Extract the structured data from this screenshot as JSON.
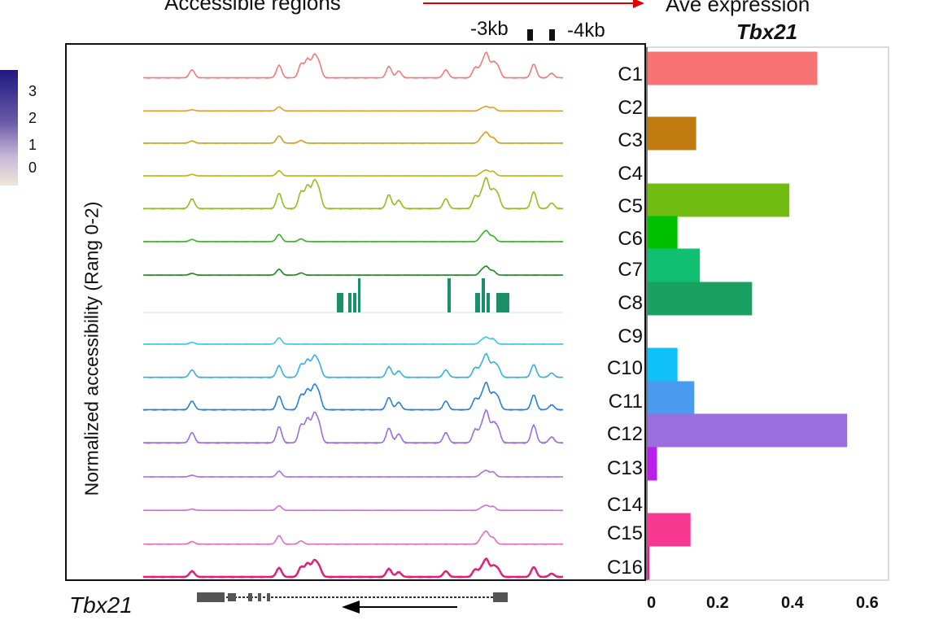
{
  "chart_data": [
    {
      "type": "area",
      "title": "Accessible regions",
      "ylabel": "Normalized accessibility (Rang 0-2)",
      "gene_label": "Tbx21",
      "region_markers": [
        "-3kb",
        "-4kb"
      ],
      "tracks": [
        "C1",
        "C2",
        "C3",
        "C4",
        "C5",
        "C6",
        "C7",
        "C8",
        "C9",
        "C10",
        "C11",
        "C12",
        "C13",
        "C14",
        "C15",
        "C16"
      ],
      "track_colors": [
        "#f07c7c",
        "#e0a030",
        "#d4a020",
        "#b8b818",
        "#90c020",
        "#40b030",
        "#208a20",
        "#1a9068",
        "#40c8e0",
        "#38b0e0",
        "#2a7fd8",
        "#9a6ee0",
        "#b070e0",
        "#d070d8",
        "#e070c0",
        "#e0207a"
      ],
      "colorbar": {
        "ticks": [
          "3",
          "2",
          "1",
          "0"
        ],
        "low_color": "#f0e6d8",
        "high_color": "#201880"
      }
    },
    {
      "type": "bar",
      "orientation": "horizontal",
      "title": "Ave expression",
      "subtitle": "Tbx21",
      "categories": [
        "C1",
        "C2",
        "C3",
        "C4",
        "C5",
        "C6",
        "C7",
        "C8",
        "C9",
        "C10",
        "C11",
        "C12",
        "C13",
        "C14",
        "C15",
        "C16"
      ],
      "values": [
        0.455,
        0.0,
        0.13,
        0.0,
        0.38,
        0.08,
        0.14,
        0.28,
        0.0,
        0.08,
        0.125,
        0.535,
        0.025,
        0.0,
        0.115,
        0.005
      ],
      "colors": [
        "#f87474",
        "#c8a020",
        "#c07a10",
        "#b0b018",
        "#70bc10",
        "#00c000",
        "#10c070",
        "#1aa060",
        "#20c0e8",
        "#10c0f8",
        "#4a9af0",
        "#9a6edc",
        "#b820e8",
        "#e070d0",
        "#f83890",
        "#e8208a"
      ],
      "xlim": [
        0,
        0.6
      ],
      "xticks": [
        "0",
        "0.2",
        "0.4",
        "0.6"
      ]
    }
  ]
}
